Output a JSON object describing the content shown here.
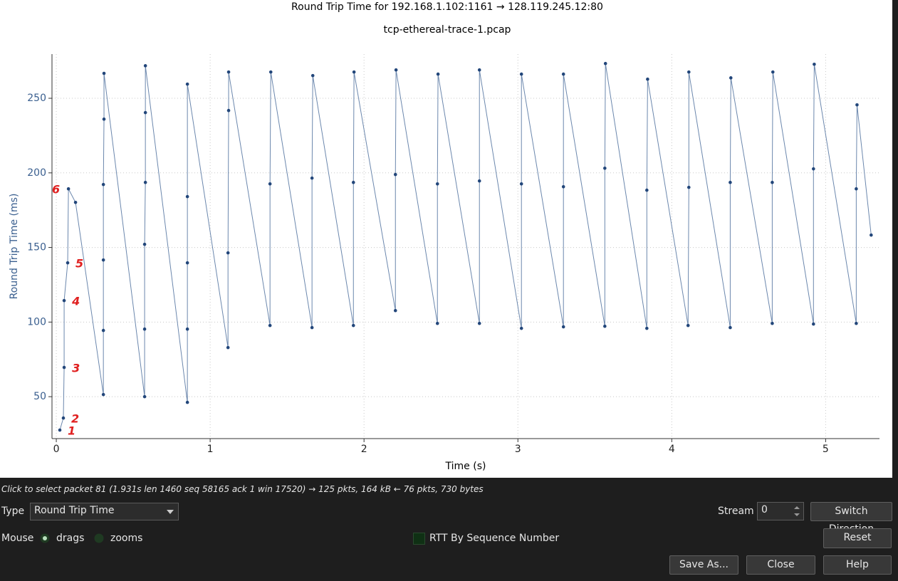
{
  "chart_data": {
    "type": "line",
    "title": "Round Trip Time for 192.168.1.102:1161 → 128.119.245.12:80",
    "subtitle": "tcp-ethereal-trace-1.pcap",
    "x_label": "Time (s)",
    "y_label": "Round Trip Time (ms)",
    "x": [
      0.023,
      0.046,
      0.051,
      0.051,
      0.074,
      0.079,
      0.125,
      0.306,
      0.306,
      0.306,
      0.306,
      0.31,
      0.31,
      0.574,
      0.574,
      0.574,
      0.579,
      0.579,
      0.579,
      0.852,
      0.852,
      0.852,
      0.852,
      0.852,
      1.116,
      1.116,
      1.12,
      1.12,
      1.389,
      1.389,
      1.394,
      1.662,
      1.662,
      1.667,
      1.931,
      1.931,
      1.935,
      2.204,
      2.204,
      2.208,
      2.477,
      2.477,
      2.481,
      2.75,
      2.75,
      2.75,
      3.023,
      3.023,
      3.023,
      3.296,
      3.296,
      3.296,
      3.565,
      3.565,
      3.569,
      3.838,
      3.838,
      3.843,
      4.106,
      4.111,
      4.111,
      4.38,
      4.38,
      4.384,
      4.653,
      4.653,
      4.657,
      4.921,
      4.921,
      4.926,
      5.199,
      5.199,
      5.204,
      5.296
    ],
    "series": [
      {
        "color": "#6b87ad",
        "marker_color": "#22467a",
        "values": [
          27.6,
          35.7,
          69.6,
          114.4,
          139.7,
          189.3,
          180.2,
          51.4,
          94.4,
          141.6,
          192.2,
          236,
          266.7,
          50,
          95.3,
          152.1,
          193.6,
          240.4,
          271.8,
          46.2,
          95.3,
          139.7,
          184.1,
          259.5,
          82.9,
          146.4,
          241.8,
          267.6,
          97.7,
          192.6,
          267.6,
          96.3,
          196.5,
          265.2,
          97.7,
          193.6,
          267.6,
          107.7,
          198.9,
          269,
          99.1,
          192.6,
          266.2,
          99.1,
          194.6,
          269,
          95.8,
          192.6,
          266.2,
          96.8,
          190.7,
          266.2,
          97.2,
          203.1,
          273.3,
          95.8,
          188.4,
          262.8,
          97.7,
          190.3,
          267.6,
          96.3,
          193.6,
          263.7,
          99.1,
          193.6,
          267.6,
          98.7,
          202.7,
          272.8,
          99.1,
          189.3,
          245.6,
          158.3
        ]
      }
    ],
    "xlim": [
      -0.028,
      5.35
    ],
    "ylim": [
      21.9,
      279.6
    ],
    "xticks": [
      0,
      1,
      2,
      3,
      4,
      5
    ],
    "yticks": [
      50,
      100,
      150,
      200,
      250
    ],
    "grid": true,
    "annotations": [
      "1",
      "2",
      "3",
      "4",
      "5",
      "6"
    ],
    "annotation_color": "#e02020"
  },
  "status": "Click to select packet 81 (1.931s len 1460 seq 58165 ack 1 win 17520) → 125 pkts, 164 kB ← 76 pkts, 730 bytes",
  "controls": {
    "type_label": "Type",
    "type_value": "Round Trip Time",
    "stream_label": "Stream",
    "stream_value": 0,
    "switch_direction": "Switch Direction",
    "mouse_label": "Mouse",
    "drags": "drags",
    "zooms": "zooms",
    "rtt_by_seq": "RTT By Sequence Number",
    "reset": "Reset",
    "save_as": "Save As...",
    "close": "Close",
    "help": "Help"
  }
}
